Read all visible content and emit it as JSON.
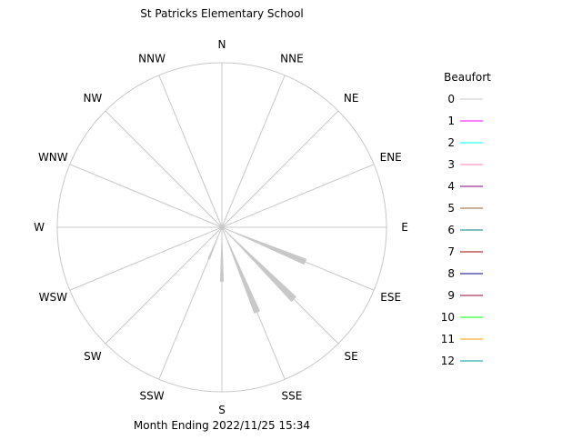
{
  "chart_data": {
    "type": "wind-rose",
    "title": "St Patricks Elementary School",
    "subtitle": "Month Ending 2022/11/25 15:34",
    "directions": [
      "N",
      "NNE",
      "NE",
      "ENE",
      "E",
      "ESE",
      "SE",
      "SSE",
      "S",
      "SSW",
      "SW",
      "WSW",
      "W",
      "WNW",
      "NW",
      "NNW"
    ],
    "scale_max": 100,
    "rings": [
      100
    ],
    "legend": {
      "title": "Beaufort",
      "placement": "right",
      "items": [
        {
          "label": "0",
          "color": "#c8c8c8"
        },
        {
          "label": "1",
          "color": "#ff00ff"
        },
        {
          "label": "2",
          "color": "#00ffff"
        },
        {
          "label": "3",
          "color": "#ff80c0"
        },
        {
          "label": "4",
          "color": "#800080"
        },
        {
          "label": "5",
          "color": "#996633"
        },
        {
          "label": "6",
          "color": "#008080"
        },
        {
          "label": "7",
          "color": "#990000"
        },
        {
          "label": "8",
          "color": "#000080"
        },
        {
          "label": "9",
          "color": "#990033"
        },
        {
          "label": "10",
          "color": "#00ff00"
        },
        {
          "label": "11",
          "color": "#ff9900"
        },
        {
          "label": "12",
          "color": "#009999"
        }
      ]
    },
    "series": [
      {
        "name": "0",
        "color": "#c8c8c8",
        "values": [
          2,
          2,
          1,
          2,
          8,
          55,
          62,
          56,
          33,
          21,
          8,
          6,
          2,
          2,
          2,
          2
        ]
      }
    ]
  }
}
